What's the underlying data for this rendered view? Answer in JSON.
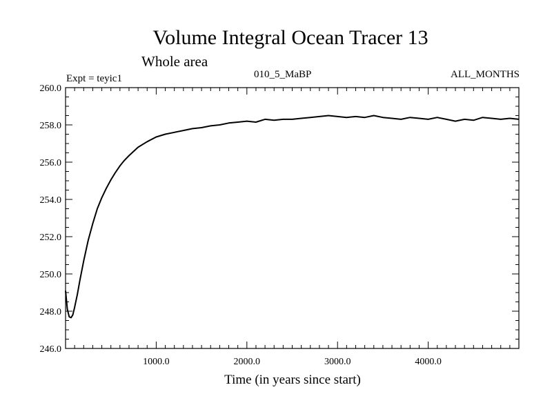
{
  "chart_data": {
    "type": "line",
    "title": "Volume Integral Ocean Tracer 13",
    "subtitle": "Whole area",
    "experiment": "Expt = teyic1",
    "run_label": "010_5_MaBP",
    "season": "ALL_MONTHS",
    "xlabel": "Time (in years since start)",
    "ylabel": "",
    "xlim": [
      0,
      5000
    ],
    "ylim": [
      246.0,
      260.0
    ],
    "x_ticks": [
      1000,
      2000,
      3000,
      4000
    ],
    "x_tick_labels": [
      "1000.0",
      "2000.0",
      "3000.0",
      "4000.0"
    ],
    "y_ticks": [
      246,
      248,
      250,
      252,
      254,
      256,
      258,
      260
    ],
    "y_tick_labels": [
      "246.0",
      "248.0",
      "250.0",
      "252.0",
      "254.0",
      "256.0",
      "258.0",
      "260.0"
    ],
    "grid": false,
    "series": [
      {
        "name": "Volume Integral Ocean Tracer 13",
        "x": [
          0,
          20,
          40,
          60,
          80,
          100,
          130,
          160,
          200,
          250,
          300,
          350,
          400,
          450,
          500,
          550,
          600,
          650,
          700,
          800,
          900,
          1000,
          1100,
          1200,
          1300,
          1400,
          1500,
          1600,
          1700,
          1800,
          1900,
          2000,
          2100,
          2200,
          2300,
          2400,
          2500,
          2600,
          2700,
          2800,
          2900,
          3000,
          3100,
          3200,
          3300,
          3400,
          3500,
          3600,
          3700,
          3800,
          3900,
          4000,
          4100,
          4200,
          4300,
          4400,
          4500,
          4600,
          4700,
          4800,
          4900,
          5000
        ],
        "values": [
          249.1,
          248.1,
          247.7,
          247.65,
          247.8,
          248.2,
          248.9,
          249.7,
          250.7,
          251.8,
          252.7,
          253.5,
          254.1,
          254.6,
          255.05,
          255.45,
          255.8,
          256.1,
          256.35,
          256.8,
          257.1,
          257.35,
          257.5,
          257.6,
          257.7,
          257.8,
          257.85,
          257.95,
          258.0,
          258.1,
          258.15,
          258.2,
          258.15,
          258.3,
          258.25,
          258.3,
          258.3,
          258.35,
          258.4,
          258.45,
          258.5,
          258.45,
          258.4,
          258.45,
          258.4,
          258.5,
          258.4,
          258.35,
          258.3,
          258.4,
          258.35,
          258.3,
          258.4,
          258.3,
          258.2,
          258.3,
          258.25,
          258.4,
          258.35,
          258.3,
          258.35,
          258.3
        ]
      }
    ]
  }
}
